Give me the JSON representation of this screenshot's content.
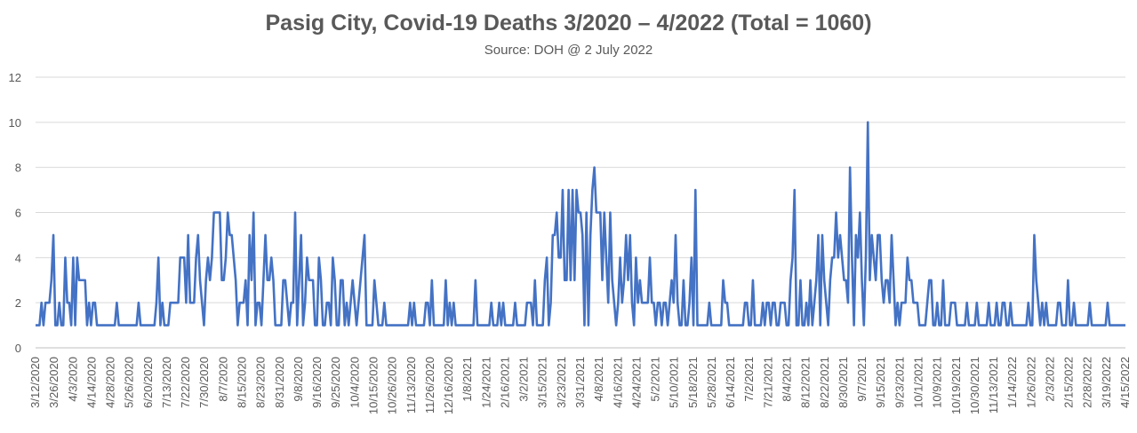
{
  "chart_data": {
    "type": "line",
    "title": "Pasig City, Covid-19 Deaths 3/2020 – 4/2022 (Total = 1060)",
    "subtitle": "Source: DOH @ 2 July 2022",
    "xlabel": "",
    "ylabel": "",
    "ylim": [
      0,
      12
    ],
    "yticks": [
      0,
      2,
      4,
      6,
      8,
      10,
      12
    ],
    "grid": true,
    "legend": "none",
    "series_color": "#4472C4",
    "x_tick_labels": [
      "3/12/2020",
      "3/26/2020",
      "4/3/2020",
      "4/14/2020",
      "4/28/2020",
      "5/26/2020",
      "6/20/2020",
      "7/13/2020",
      "7/22/2020",
      "7/30/2020",
      "8/7/2020",
      "8/15/2020",
      "8/23/2020",
      "8/31/2020",
      "9/8/2020",
      "9/16/2020",
      "9/25/2020",
      "10/4/2020",
      "10/15/2020",
      "10/26/2020",
      "11/13/2020",
      "11/26/2020",
      "12/16/2020",
      "1/8/2021",
      "1/24/2021",
      "2/16/2021",
      "3/2/2021",
      "3/15/2021",
      "3/23/2021",
      "3/31/2021",
      "4/8/2021",
      "4/16/2021",
      "4/24/2021",
      "5/2/2021",
      "5/10/2021",
      "5/18/2021",
      "5/28/2021",
      "6/14/2021",
      "7/2/2021",
      "7/21/2021",
      "8/4/2021",
      "8/12/2021",
      "8/22/2021",
      "8/30/2021",
      "9/7/2021",
      "9/15/2021",
      "9/23/2021",
      "10/1/2021",
      "10/9/2021",
      "10/19/2021",
      "10/30/2021",
      "11/13/2021",
      "1/14/2022",
      "1/26/2022",
      "2/3/2022",
      "2/15/2022",
      "2/28/2022",
      "3/19/2022",
      "4/15/2022"
    ],
    "values": [
      1,
      1,
      1,
      2,
      1,
      2,
      2,
      2,
      3,
      5,
      1,
      1,
      2,
      1,
      1,
      4,
      2,
      2,
      1,
      4,
      1,
      4,
      3,
      3,
      3,
      3,
      1,
      2,
      1,
      2,
      2,
      1,
      1,
      1,
      1,
      1,
      1,
      1,
      1,
      1,
      1,
      2,
      1,
      1,
      1,
      1,
      1,
      1,
      1,
      1,
      1,
      1,
      2,
      1,
      1,
      1,
      1,
      1,
      1,
      1,
      1,
      2,
      4,
      1,
      2,
      1,
      1,
      1,
      2,
      2,
      2,
      2,
      2,
      4,
      4,
      4,
      2,
      5,
      2,
      2,
      2,
      4,
      5,
      3,
      2,
      1,
      3,
      4,
      3,
      4,
      6,
      6,
      6,
      6,
      3,
      3,
      4,
      6,
      5,
      5,
      4,
      3,
      1,
      2,
      2,
      2,
      3,
      1,
      5,
      3,
      6,
      1,
      2,
      2,
      1,
      3,
      5,
      3,
      3,
      4,
      3,
      1,
      1,
      1,
      1,
      3,
      3,
      2,
      1,
      2,
      2,
      6,
      1,
      3,
      5,
      1,
      2,
      4,
      3,
      3,
      3,
      1,
      1,
      4,
      3,
      1,
      1,
      2,
      2,
      1,
      4,
      3,
      1,
      1,
      3,
      3,
      1,
      2,
      1,
      2,
      3,
      2,
      1,
      2,
      3,
      4,
      5,
      1,
      1,
      1,
      1,
      3,
      2,
      1,
      1,
      1,
      2,
      1,
      1,
      1,
      1,
      1,
      1,
      1,
      1,
      1,
      1,
      1,
      1,
      2,
      1,
      2,
      1,
      1,
      1,
      1,
      1,
      2,
      2,
      1,
      3,
      1,
      1,
      1,
      1,
      1,
      1,
      3,
      1,
      2,
      1,
      2,
      1,
      1,
      1,
      1,
      1,
      1,
      1,
      1,
      1,
      1,
      3,
      1,
      1,
      1,
      1,
      1,
      1,
      1,
      2,
      1,
      1,
      1,
      2,
      1,
      2,
      1,
      1,
      1,
      1,
      1,
      2,
      1,
      1,
      1,
      1,
      1,
      2,
      2,
      2,
      1,
      3,
      1,
      1,
      1,
      1,
      3,
      4,
      1,
      2,
      5,
      5,
      6,
      4,
      4,
      7,
      3,
      3,
      7,
      3,
      7,
      3,
      7,
      6,
      6,
      5,
      1,
      6,
      1,
      5,
      7,
      8,
      6,
      6,
      6,
      3,
      6,
      4,
      2,
      6,
      3,
      2,
      1,
      2,
      4,
      2,
      3,
      5,
      3,
      5,
      2,
      1,
      4,
      2,
      3,
      2,
      2,
      2,
      2,
      4,
      2,
      2,
      1,
      2,
      2,
      1,
      2,
      2,
      1,
      2,
      3,
      2,
      5,
      2,
      1,
      1,
      3,
      1,
      1,
      2,
      4,
      1,
      7,
      1,
      1,
      1,
      1,
      1,
      1,
      2,
      1,
      1,
      1,
      1,
      1,
      1,
      3,
      2,
      2,
      1,
      1,
      1,
      1,
      1,
      1,
      1,
      1,
      2,
      2,
      1,
      1,
      3,
      1,
      1,
      1,
      1,
      2,
      1,
      2,
      2,
      1,
      2,
      2,
      1,
      1,
      2,
      2,
      2,
      1,
      1,
      3,
      4,
      7,
      1,
      1,
      3,
      1,
      1,
      2,
      1,
      3,
      1,
      2,
      3,
      5,
      1,
      5,
      3,
      2,
      1,
      3,
      4,
      4,
      6,
      4,
      5,
      4,
      3,
      3,
      2,
      8,
      4,
      1,
      5,
      4,
      6,
      3,
      1,
      4,
      10,
      3,
      5,
      4,
      3,
      5,
      5,
      3,
      2,
      3,
      3,
      2,
      5,
      3,
      1,
      2,
      1,
      2,
      2,
      2,
      4,
      3,
      3,
      2,
      2,
      2,
      1,
      1,
      1,
      1,
      2,
      3,
      3,
      1,
      1,
      2,
      1,
      1,
      3,
      1,
      1,
      1,
      2,
      2,
      2,
      1,
      1,
      1,
      1,
      1,
      2,
      1,
      1,
      1,
      1,
      2,
      1,
      1,
      1,
      1,
      1,
      2,
      1,
      1,
      1,
      2,
      1,
      1,
      2,
      2,
      1,
      1,
      2,
      1,
      1,
      1,
      1,
      1,
      1,
      1,
      1,
      2,
      1,
      1,
      5,
      3,
      2,
      1,
      2,
      1,
      2,
      1,
      1,
      1,
      1,
      1,
      2,
      2,
      1,
      1,
      1,
      3,
      1,
      1,
      2,
      1,
      1,
      1,
      1,
      1,
      1,
      1,
      2,
      1,
      1,
      1,
      1,
      1,
      1,
      1,
      1,
      2,
      1,
      1,
      1,
      1,
      1,
      1,
      1,
      1,
      1
    ]
  }
}
